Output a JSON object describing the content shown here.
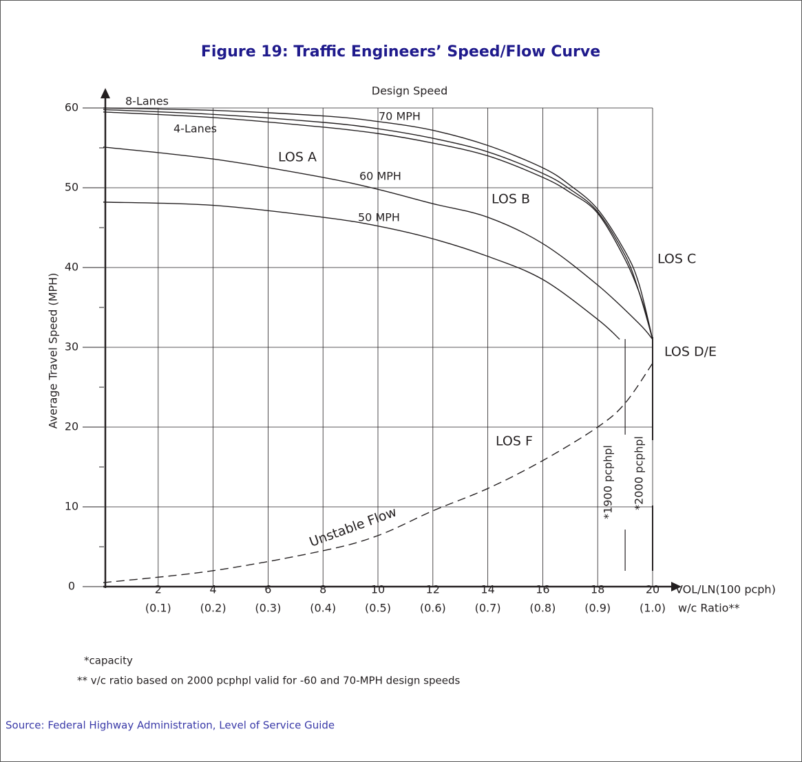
{
  "chart_data": {
    "type": "line",
    "title": "Figure 19: Traffic Engineers’ Speed/Flow Curve",
    "ylabel": "Average Travel Speed (MPH)",
    "xlabel": "VOL/LN(100 pcph)",
    "x2label": "w/c Ratio**",
    "xlim": [
      0,
      20
    ],
    "ylim": [
      0,
      60
    ],
    "xticks": [
      2,
      4,
      6,
      8,
      10,
      12,
      14,
      16,
      18,
      20
    ],
    "x2ticklabels": [
      "(0.1)",
      "(0.2)",
      "(0.3)",
      "(0.4)",
      "(0.5)",
      "(0.6)",
      "(0.7)",
      "(0.8)",
      "(0.9)",
      "(1.0)"
    ],
    "yticks": [
      0,
      10,
      20,
      30,
      40,
      50,
      60
    ],
    "yminorticks": [
      5,
      15,
      25,
      35,
      45,
      55
    ],
    "grid": true,
    "series": [
      {
        "color": "#231f20",
        "dashed": false,
        "x": [
          0,
          4,
          8,
          10,
          12,
          14,
          16,
          17,
          18,
          19,
          19.5,
          20
        ],
        "values": [
          60,
          59.7,
          59.0,
          58.3,
          57.2,
          55.3,
          52.5,
          50.3,
          47.3,
          42,
          38,
          31
        ]
      },
      {
        "color": "#231f20",
        "dashed": false,
        "x": [
          0,
          4,
          8,
          10,
          12,
          14,
          16,
          17,
          18,
          19,
          19.5,
          20
        ],
        "values": [
          59.8,
          59.2,
          58.2,
          57.4,
          56.2,
          54.5,
          51.8,
          49.8,
          47,
          41.5,
          37,
          31
        ]
      },
      {
        "color": "#231f20",
        "dashed": false,
        "x": [
          0,
          4,
          8,
          10,
          12,
          14,
          16,
          17,
          18,
          19,
          19.6,
          20
        ],
        "values": [
          59.5,
          58.8,
          57.6,
          56.8,
          55.6,
          54,
          51.3,
          49.4,
          46.8,
          41,
          36,
          31
        ]
      },
      {
        "color": "#231f20",
        "dashed": false,
        "x": [
          0,
          4,
          8,
          10,
          12,
          14,
          16,
          18,
          19.5,
          20
        ],
        "values": [
          55.1,
          53.6,
          51.3,
          49.8,
          48,
          46.3,
          43,
          37.8,
          33,
          31
        ]
      },
      {
        "color": "#231f20",
        "dashed": false,
        "x": [
          0,
          4,
          8,
          10,
          12,
          14,
          16,
          18,
          18.8
        ],
        "values": [
          48.2,
          47.8,
          46.3,
          45.2,
          43.6,
          41.4,
          38.5,
          33.5,
          31
        ]
      },
      {
        "color": "#231f20",
        "dashed": true,
        "x": [
          0,
          4,
          8,
          10,
          12,
          14,
          16,
          18,
          19,
          20
        ],
        "values": [
          0.5,
          2,
          4.5,
          6.4,
          9.5,
          12.3,
          15.8,
          20,
          23,
          28
        ]
      }
    ],
    "capacity_x": [
      19,
      20
    ],
    "annotations": [
      "Design Speed",
      "8-Lanes",
      "4-Lanes",
      "70 MPH",
      "LOS A",
      "60 MPH",
      "LOS B",
      "50 MPH",
      "LOS C",
      "LOS D/E",
      "LOS F",
      "Unstable Flow",
      "*1900 pcphpl",
      "*2000 pcphpl"
    ],
    "footnotes": [
      "*capacity",
      "** v/c ratio based on 2000 pcphpl valid for -60 and 70-MPH design speeds"
    ]
  },
  "source": "Source: Federal Highway Administration, Level of Service Guide"
}
